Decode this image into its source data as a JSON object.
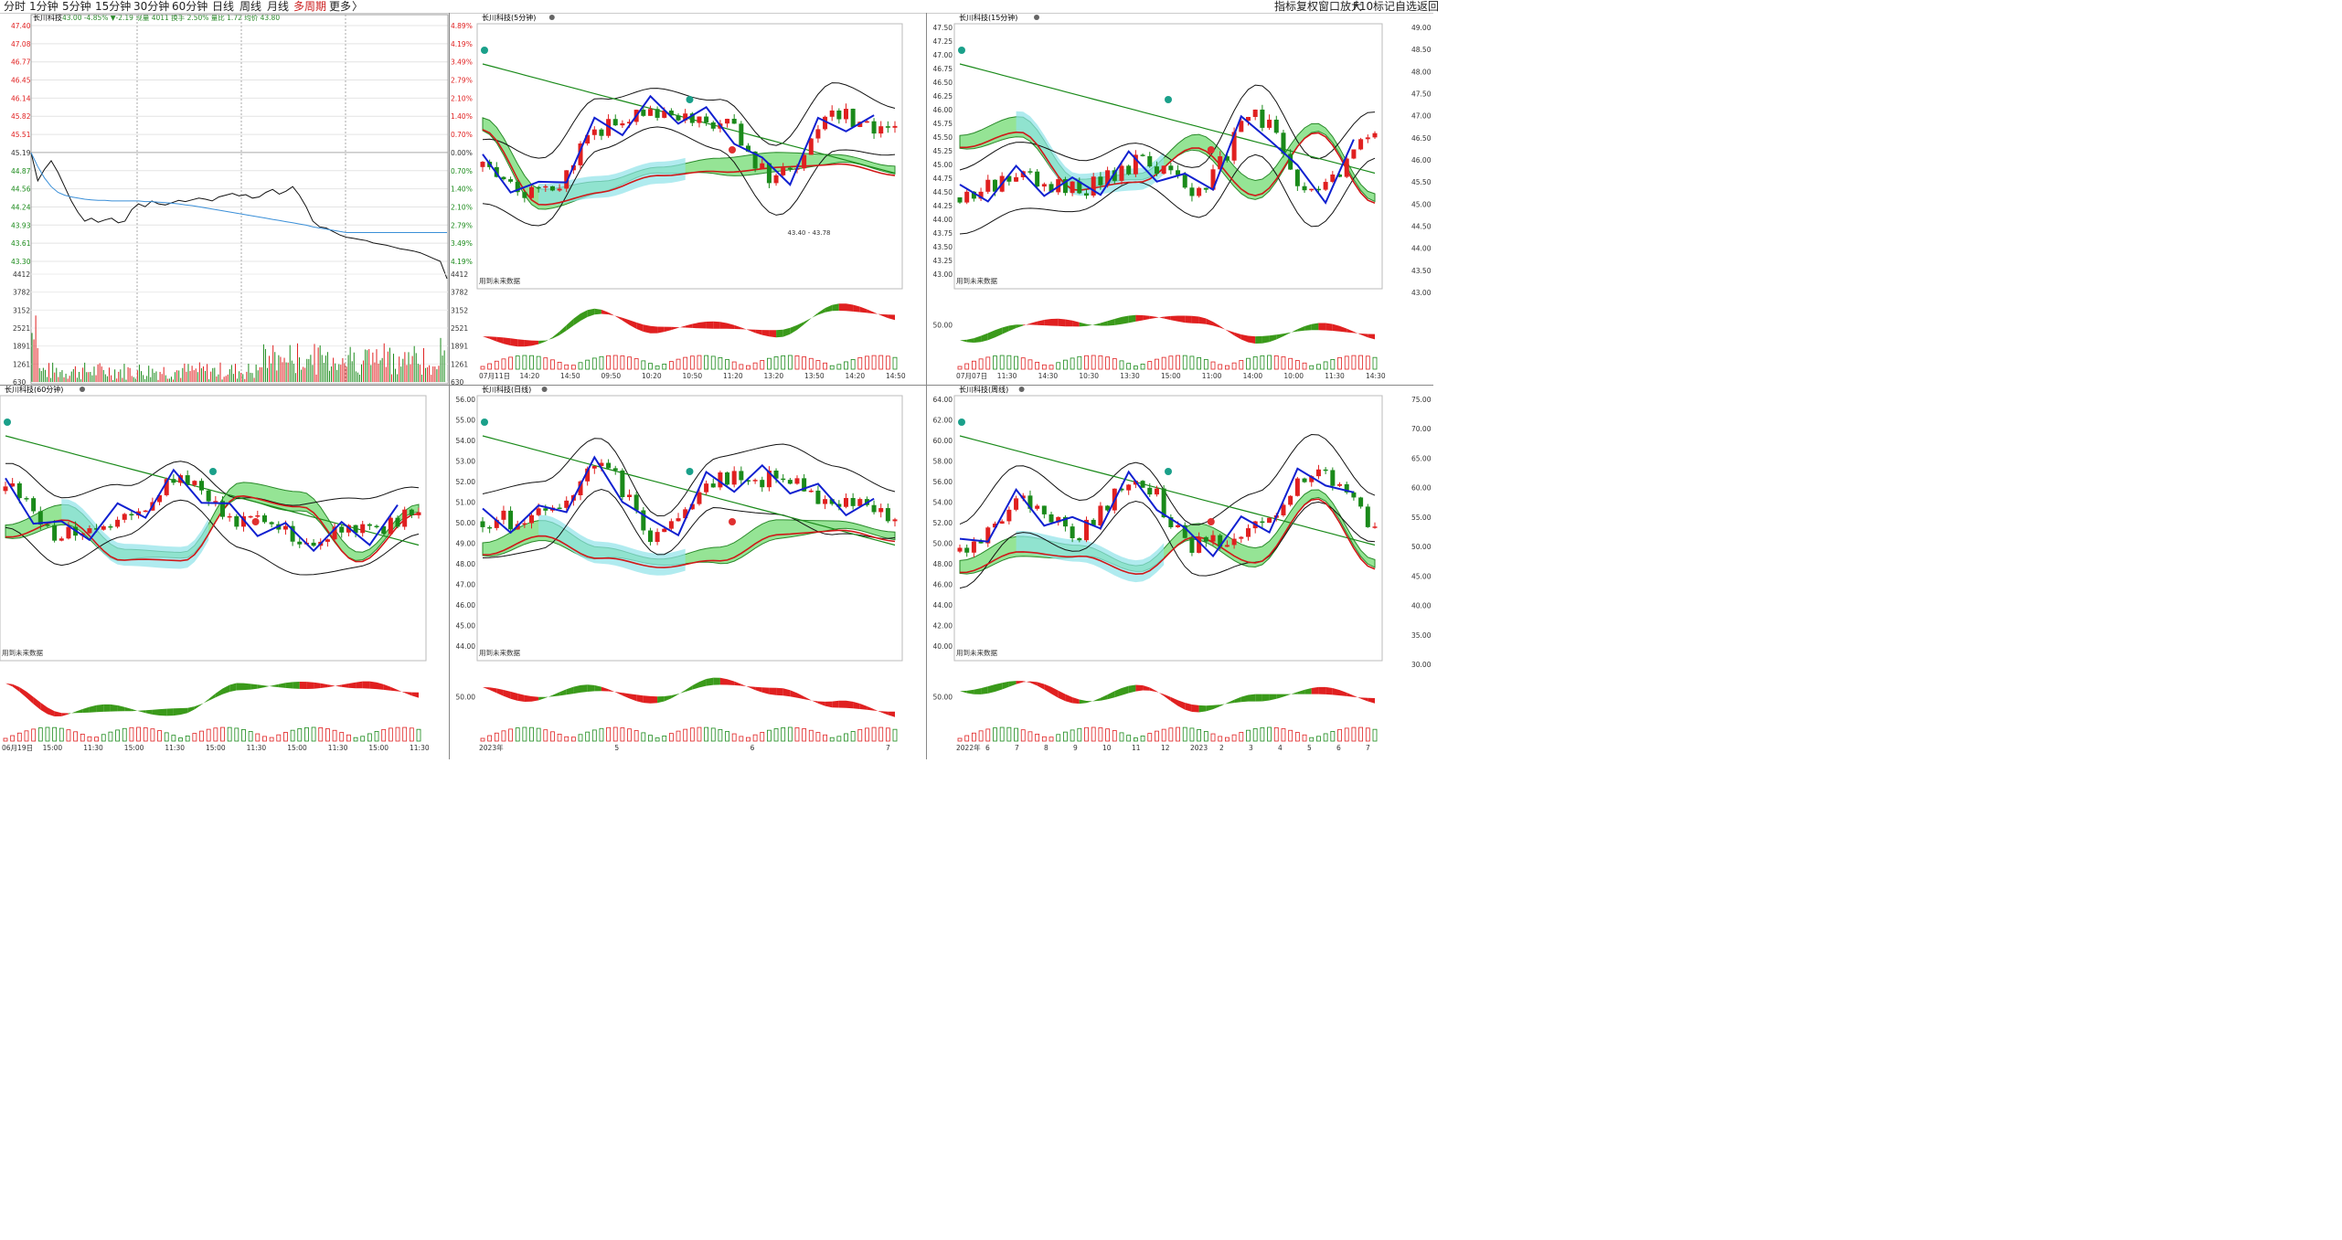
{
  "toolbar": {
    "tabs": [
      {
        "label": "分时",
        "active": false
      },
      {
        "label": "1分钟",
        "active": false
      },
      {
        "label": "5分钟",
        "active": false
      },
      {
        "label": "15分钟",
        "active": false
      },
      {
        "label": "30分钟",
        "active": false
      },
      {
        "label": "60分钟",
        "active": false
      },
      {
        "label": "日线",
        "active": false
      },
      {
        "label": "周线",
        "active": false
      },
      {
        "label": "月线",
        "active": false
      },
      {
        "label": "多周期",
        "active": true
      },
      {
        "label": "更多",
        "active": false
      }
    ],
    "close_paren": "〉",
    "right_items": [
      "指标",
      "复权",
      "窗口",
      "放大",
      "F10",
      "标记",
      "自选",
      "返回"
    ]
  },
  "colors": {
    "up": "#e02020",
    "down": "#1a8a1a",
    "ma_blue": "#1020d0",
    "band_green": "#5cd65c",
    "band_cyan": "#8fe3e8",
    "grid": "#d8d8d8",
    "price_line": "#111111",
    "avg_line": "#3a8fd8"
  },
  "intraday": {
    "stock_name": "长川科技",
    "header": "43.00 -4.85% ▼-2.19 现量 4011 换手 2.50% 量比 1.72 均价 43.80",
    "price_labels": [
      "47.40",
      "47.08",
      "46.77",
      "46.45",
      "46.14",
      "45.82",
      "45.51",
      "45.19",
      "44.87",
      "44.56",
      "44.24",
      "43.93",
      "43.61",
      "43.30"
    ],
    "pct_labels": [
      "4.89%",
      "4.19%",
      "3.49%",
      "2.79%",
      "2.10%",
      "1.40%",
      "0.70%",
      "0.00%",
      "0.70%",
      "1.40%",
      "2.10%",
      "2.79%",
      "3.49%",
      "4.19%"
    ],
    "vol_labels": [
      "4412",
      "3782",
      "3152",
      "2521",
      "1891",
      "1261",
      "630"
    ],
    "chart_data": {
      "type": "line",
      "title": "长川科技",
      "series": [
        {
          "name": "price",
          "values": [
            45.19,
            44.7,
            44.9,
            45.05,
            44.85,
            44.6,
            44.35,
            44.15,
            44.0,
            44.05,
            43.98,
            44.02,
            44.05,
            43.97,
            44.0,
            44.2,
            44.3,
            44.25,
            44.35,
            44.3,
            44.28,
            44.32,
            44.36,
            44.34,
            44.37,
            44.4,
            44.38,
            44.35,
            44.42,
            44.45,
            44.48,
            44.44,
            44.46,
            44.4,
            44.42,
            44.5,
            44.55,
            44.47,
            44.52,
            44.6,
            44.45,
            44.25,
            44.0,
            43.9,
            43.88,
            43.82,
            43.76,
            43.72,
            43.7,
            43.68,
            43.66,
            43.62,
            43.6,
            43.58,
            43.55,
            43.52,
            43.5,
            43.48,
            43.45,
            43.4,
            43.35,
            43.3,
            43.0
          ]
        },
        {
          "name": "avg",
          "values": [
            45.19,
            44.95,
            44.75,
            44.6,
            44.5,
            44.45,
            44.42,
            44.4,
            44.38,
            44.37,
            44.36,
            44.36,
            44.35,
            44.35,
            44.35,
            44.35,
            44.35,
            44.34,
            44.34,
            44.33,
            44.32,
            44.31,
            44.3,
            44.28,
            44.27,
            44.25,
            44.23,
            44.21,
            44.19,
            44.17,
            44.15,
            44.13,
            44.11,
            44.09,
            44.07,
            44.05,
            44.03,
            44.01,
            43.99,
            43.97,
            43.95,
            43.93,
            43.9,
            43.88,
            43.86,
            43.84,
            43.82,
            43.8,
            43.8,
            43.8,
            43.8,
            43.8,
            43.8,
            43.8,
            43.8,
            43.8,
            43.8,
            43.8,
            43.8,
            43.8,
            43.8,
            43.8,
            43.8
          ]
        }
      ],
      "ylim": [
        43.3,
        47.4
      ]
    }
  },
  "panels": [
    {
      "name": "长川科技(5分钟)",
      "price_labels": [],
      "osc_label": "",
      "future_label": "用到未来数据",
      "annotation": "43.40 - 43.78",
      "date_labels": [
        "07月11日",
        "14:20",
        "14:50",
        "09:50",
        "10:20",
        "10:50",
        "11:20",
        "13:20",
        "13:50",
        "14:20",
        "14:50"
      ]
    },
    {
      "name": "长川科技(15分钟)",
      "price_labels": [
        "47.50",
        "47.25",
        "47.00",
        "46.75",
        "46.50",
        "46.25",
        "46.00",
        "45.75",
        "45.50",
        "45.25",
        "45.00",
        "44.75",
        "44.50",
        "44.25",
        "44.00",
        "43.75",
        "43.50",
        "43.25",
        "43.00"
      ],
      "right_labels": [
        "49.00",
        "48.50",
        "48.00",
        "47.50",
        "47.00",
        "46.50",
        "46.00",
        "45.50",
        "45.00",
        "44.50",
        "44.00",
        "43.50",
        "43.00"
      ],
      "osc_label": "50.00",
      "future_label": "用到未来数据",
      "date_labels": [
        "07月07日",
        "11:30",
        "14:30",
        "10:30",
        "13:30",
        "15:00",
        "11:00",
        "14:00",
        "10:00",
        "11:30",
        "14:30"
      ]
    },
    {
      "name": "长川科技(60分钟)",
      "price_labels": [],
      "osc_label": "",
      "future_label": "用到未来数据",
      "date_labels": [
        "06月19日",
        "15:00",
        "11:30",
        "15:00",
        "11:30",
        "15:00",
        "11:30",
        "15:00",
        "11:30",
        "15:00",
        "11:30"
      ]
    },
    {
      "name": "长川科技(日线)",
      "price_labels": [
        "56.00",
        "55.00",
        "54.00",
        "53.00",
        "52.00",
        "51.00",
        "50.00",
        "49.00",
        "48.00",
        "47.00",
        "46.00",
        "45.00",
        "44.00"
      ],
      "osc_label": "50.00",
      "future_label": "用到未来数据",
      "date_labels": [
        "2023年",
        "5",
        "6",
        "7"
      ]
    },
    {
      "name": "长川科技(周线)",
      "price_labels": [
        "64.00",
        "62.00",
        "60.00",
        "58.00",
        "56.00",
        "54.00",
        "52.00",
        "50.00",
        "48.00",
        "46.00",
        "44.00",
        "42.00",
        "40.00"
      ],
      "right_labels": [
        "75.00",
        "70.00",
        "65.00",
        "60.00",
        "55.00",
        "50.00",
        "45.00",
        "40.00",
        "35.00",
        "30.00"
      ],
      "osc_label": "50.00",
      "future_label": "用到未来数据",
      "date_labels": [
        "2022年",
        "6",
        "7",
        "8",
        "9",
        "10",
        "11",
        "12",
        "2023",
        "2",
        "3",
        "4",
        "5",
        "6",
        "7"
      ]
    }
  ]
}
